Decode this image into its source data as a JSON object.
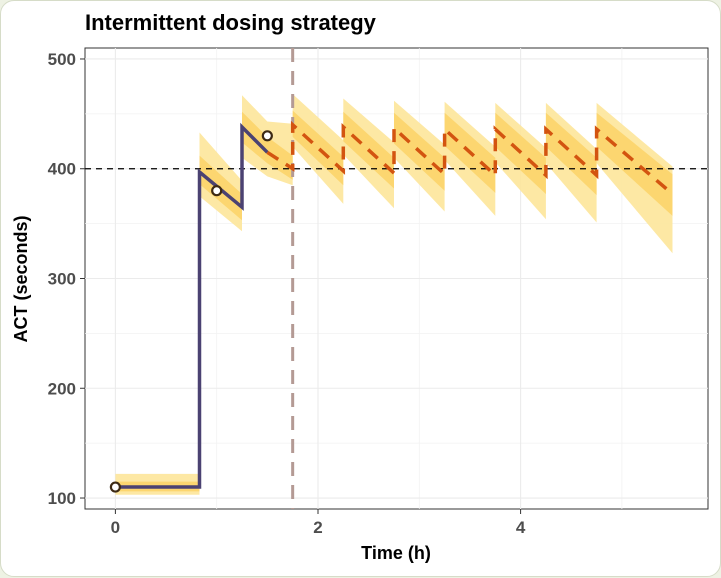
{
  "chart_data": {
    "type": "line",
    "title": "Intermittent dosing strategy",
    "xlabel": "Time (h)",
    "ylabel": "ACT (seconds)",
    "xlim": [
      -0.3,
      5.85
    ],
    "ylim": [
      90,
      510
    ],
    "xticks": [
      0,
      2,
      4
    ],
    "xtick_labels": [
      "0",
      "2",
      "4"
    ],
    "yticks": [
      100,
      200,
      300,
      400,
      500
    ],
    "ytick_labels": [
      "100",
      "200",
      "300",
      "400",
      "500"
    ],
    "grid": true,
    "legend": "none",
    "reference_lines": [
      {
        "orientation": "horizontal",
        "value": 400,
        "style": "dashed",
        "color": "#000000"
      },
      {
        "orientation": "vertical",
        "value": 1.75,
        "style": "dashed",
        "color": "#b49a94"
      }
    ],
    "colors": {
      "observed_line": "#4b4272",
      "predicted_line": "#d35410",
      "band_outer": "#fde59a",
      "band_inner": "#fcd46a",
      "observation_point": "#3d2a14"
    },
    "series": [
      {
        "role": "fitted",
        "style": "solid",
        "x": [
          0,
          0.83,
          0.83,
          1.25,
          1.25,
          1.5
        ],
        "y": [
          110,
          110,
          397,
          365,
          438,
          415
        ]
      },
      {
        "role": "prediction",
        "style": "dashed",
        "x": [
          1.5,
          1.75,
          1.75,
          2.25,
          2.25,
          2.75,
          2.75,
          3.25,
          3.25,
          3.75,
          3.75,
          4.25,
          4.25,
          4.75,
          4.75,
          5.5
        ],
        "y": [
          415,
          400,
          440,
          398,
          438,
          396,
          437,
          395,
          436,
          394,
          436,
          394,
          436,
          394,
          436,
          377
        ]
      },
      {
        "role": "observations",
        "style": "points",
        "x": [
          0,
          1.0,
          1.5
        ],
        "y": [
          110,
          380,
          430
        ]
      }
    ],
    "bands": [
      {
        "role": "outer",
        "x": [
          0,
          0.83,
          0.83,
          1.25,
          1.25,
          1.5,
          1.75,
          1.75,
          2.25,
          2.25,
          2.75,
          2.75,
          3.25,
          3.25,
          3.75,
          3.75,
          4.25,
          4.25,
          4.75,
          4.75,
          5.5
        ],
        "lower": [
          103,
          103,
          375,
          343,
          410,
          393,
          385,
          420,
          368,
          413,
          364,
          410,
          361,
          408,
          357,
          406,
          354,
          405,
          351,
          405,
          323
        ],
        "upper": [
          122,
          122,
          433,
          389,
          467,
          443,
          441,
          468,
          426,
          464,
          424,
          462,
          422,
          461,
          420,
          460,
          419,
          460,
          418,
          460,
          402
        ]
      },
      {
        "role": "inner",
        "x": [
          0,
          0.83,
          0.83,
          1.25,
          1.25,
          1.5,
          1.75,
          1.75,
          2.25,
          2.25,
          2.75,
          2.75,
          3.25,
          3.25,
          3.75,
          3.75,
          4.25,
          4.25,
          4.75,
          4.75,
          5.5
        ],
        "lower": [
          106,
          106,
          386,
          353,
          424,
          405,
          390,
          429,
          385,
          425,
          382,
          423,
          380,
          421,
          378,
          420,
          377,
          420,
          376,
          420,
          357
        ],
        "upper": [
          115,
          115,
          412,
          377,
          452,
          429,
          412,
          453,
          411,
          452,
          410,
          451,
          410,
          451,
          410,
          451,
          410,
          451,
          410,
          451,
          395
        ]
      }
    ]
  }
}
